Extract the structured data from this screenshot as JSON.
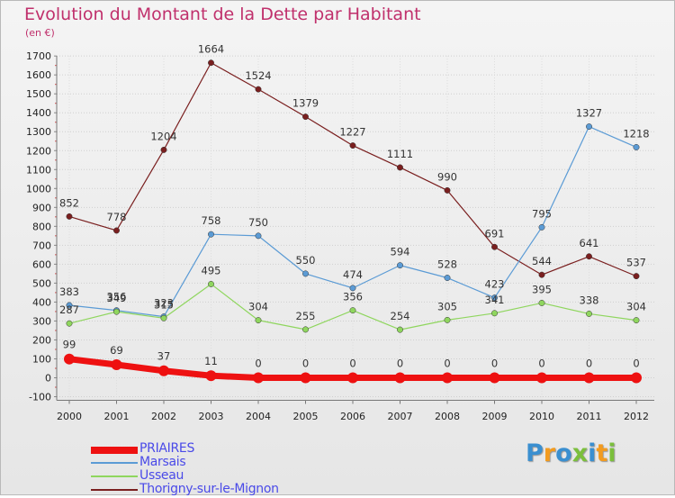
{
  "title": "Evolution du Montant de la Dette par Habitant",
  "subtitle": "(en €)",
  "logo": {
    "text": "Proxiti",
    "colors": [
      "#3a8fd0",
      "#f29b1f",
      "#3a8fd0",
      "#7bbf3c",
      "#3a8fd0",
      "#f29b1f",
      "#7bbf3c"
    ]
  },
  "chart_data": {
    "type": "line",
    "x": [
      "2000",
      "2001",
      "2002",
      "2003",
      "2004",
      "2005",
      "2006",
      "2007",
      "2008",
      "2009",
      "2010",
      "2011",
      "2012"
    ],
    "ylim": [
      -100,
      1700
    ],
    "yticks": [
      -100,
      0,
      100,
      200,
      300,
      400,
      500,
      600,
      700,
      800,
      900,
      1000,
      1100,
      1200,
      1300,
      1400,
      1500,
      1600,
      1700
    ],
    "grid": true,
    "legend_position": "bottom-left",
    "series": [
      {
        "name": "Thorigny-sur-le-Mignon",
        "color": "#7a1f1f",
        "values": [
          852,
          778,
          1204,
          1664,
          1524,
          1379,
          1227,
          1111,
          990,
          691,
          544,
          641,
          537
        ],
        "labels": [
          "852",
          "778",
          "1204",
          "1664",
          "1524",
          "1379",
          "1227",
          "1111",
          "990",
          "691",
          "544",
          "641",
          "537"
        ]
      },
      {
        "name": "Marsais",
        "color": "#5b9bd5",
        "values": [
          383,
          356,
          323,
          758,
          750,
          550,
          474,
          594,
          528,
          423,
          795,
          1327,
          1218
        ],
        "labels": [
          "383",
          "356",
          "323",
          "758",
          "750",
          "550",
          "474",
          "594",
          "528",
          "423",
          "795",
          "1327",
          "1218"
        ]
      },
      {
        "name": "Usseau",
        "color": "#8fd65e",
        "values": [
          287,
          349,
          315,
          495,
          304,
          255,
          356,
          254,
          305,
          341,
          395,
          338,
          304
        ],
        "labels": [
          "287",
          "349",
          "315",
          "495",
          "304",
          "255",
          "356",
          "254",
          "305",
          "341",
          "395",
          "338",
          "304"
        ]
      },
      {
        "name": "PRIAIRES",
        "color": "#ee1111",
        "values": [
          99,
          69,
          37,
          11,
          0,
          0,
          0,
          0,
          0,
          0,
          0,
          0,
          0
        ],
        "labels": [
          "99",
          "69",
          "37",
          "11",
          "0",
          "0",
          "0",
          "0",
          "0",
          "0",
          "0",
          "0",
          "0"
        ]
      }
    ]
  },
  "legend": [
    {
      "name": "PRIAIRES",
      "color": "#ee1111"
    },
    {
      "name": "Marsais",
      "color": "#5b9bd5"
    },
    {
      "name": "Usseau",
      "color": "#8fd65e"
    },
    {
      "name": "Thorigny-sur-le-Mignon",
      "color": "#7a1f1f"
    }
  ]
}
